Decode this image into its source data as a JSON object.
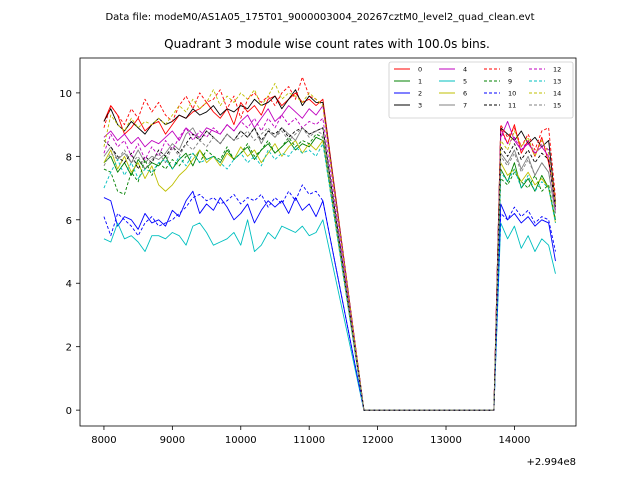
{
  "figure": {
    "suptitle": "Data file: modeM0/AS1A05_175T01_9000003004_20267cztM0_level2_quad_clean.evt"
  },
  "chart_data": {
    "type": "line",
    "title": "Quadrant 3 module wise count rates with 100.0s bins.",
    "xlabel": "",
    "ylabel": "",
    "x_offset_label": "+2.994e8",
    "xlim": [
      7650,
      14900
    ],
    "ylim": [
      -0.5,
      11.1
    ],
    "x_ticks": [
      8000,
      9000,
      10000,
      11000,
      12000,
      13000,
      14000
    ],
    "y_ticks": [
      0,
      2,
      4,
      6,
      8,
      10
    ],
    "legend_position": "upper right",
    "legend_columns": 4,
    "series": [
      {
        "name": "0",
        "color": "#ff0000",
        "dash": "solid",
        "seg1": [
          9.1,
          9.6,
          9.3,
          8.7,
          8.9,
          9.2,
          8.8,
          9.0,
          9.1,
          8.7,
          9.0,
          9.3,
          9.2,
          9.4,
          9.5,
          9.7,
          9.4,
          9.2,
          9.5,
          9.0,
          9.7,
          9.4,
          9.6,
          9.3,
          9.8,
          9.9,
          9.6,
          9.8,
          10.0,
          9.7,
          9.8,
          9.6,
          9.8
        ],
        "seg2": [
          8.9,
          8.4,
          9.0,
          8.1,
          8.5,
          8.0,
          8.6,
          7.8,
          6.6
        ]
      },
      {
        "name": "1",
        "color": "#008000",
        "dash": "solid",
        "seg1": [
          7.8,
          8.0,
          7.5,
          7.8,
          7.4,
          7.9,
          7.6,
          7.8,
          7.7,
          8.0,
          7.6,
          7.9,
          8.1,
          7.7,
          8.2,
          7.9,
          8.0,
          7.8,
          8.2,
          7.9,
          8.1,
          8.3,
          7.9,
          8.2,
          8.4,
          8.1,
          8.3,
          8.5,
          8.2,
          8.4,
          8.3,
          8.6,
          8.5
        ],
        "seg2": [
          7.6,
          7.2,
          7.8,
          7.0,
          7.3,
          6.9,
          7.4,
          7.0,
          6.0
        ]
      },
      {
        "name": "2",
        "color": "#0000ff",
        "dash": "solid",
        "seg1": [
          6.7,
          6.6,
          5.8,
          6.1,
          6.0,
          5.7,
          6.2,
          5.9,
          6.0,
          5.8,
          6.3,
          6.1,
          6.6,
          6.9,
          6.2,
          6.5,
          6.3,
          6.7,
          6.4,
          6.0,
          6.2,
          6.5,
          5.9,
          6.3,
          6.6,
          6.4,
          6.6,
          6.2,
          6.7,
          6.3,
          6.5,
          6.1,
          6.6
        ],
        "seg2": [
          6.5,
          6.0,
          6.2,
          5.9,
          6.1,
          5.8,
          6.0,
          5.9,
          4.7
        ]
      },
      {
        "name": "3",
        "color": "#000000",
        "dash": "solid",
        "seg1": [
          9.1,
          9.5,
          9.0,
          8.8,
          9.1,
          8.9,
          8.7,
          9.0,
          9.2,
          9.0,
          9.1,
          9.3,
          9.2,
          9.5,
          9.3,
          9.4,
          9.6,
          9.3,
          9.5,
          9.4,
          9.6,
          9.5,
          9.8,
          9.6,
          9.7,
          9.9,
          9.5,
          9.8,
          10.1,
          9.6,
          9.9,
          9.7,
          9.7
        ],
        "seg2": [
          8.9,
          8.7,
          8.5,
          8.8,
          8.4,
          8.6,
          8.3,
          8.5,
          6.5
        ]
      },
      {
        "name": "4",
        "color": "#bf00bf",
        "dash": "solid",
        "seg1": [
          8.6,
          8.8,
          8.5,
          8.7,
          8.4,
          8.6,
          8.3,
          8.5,
          8.4,
          8.6,
          8.8,
          8.5,
          8.9,
          8.7,
          8.6,
          8.9,
          8.8,
          8.7,
          9.0,
          8.8,
          9.1,
          9.3,
          8.9,
          9.2,
          9.5,
          9.1,
          9.3,
          9.6,
          9.4,
          9.2,
          9.5,
          9.3,
          9.6
        ],
        "seg2": [
          8.6,
          9.1,
          8.5,
          8.2,
          8.4,
          8.1,
          8.3,
          8.0,
          6.3
        ]
      },
      {
        "name": "5",
        "color": "#00bfbf",
        "dash": "solid",
        "seg1": [
          5.4,
          5.3,
          5.9,
          5.4,
          5.5,
          5.3,
          5.0,
          5.5,
          5.5,
          5.4,
          5.6,
          5.5,
          5.2,
          5.8,
          5.9,
          5.6,
          5.2,
          5.3,
          5.4,
          5.6,
          5.2,
          6.0,
          5.0,
          5.2,
          5.6,
          5.4,
          5.8,
          5.7,
          5.6,
          5.8,
          5.5,
          5.6,
          6.0
        ],
        "seg2": [
          5.9,
          5.4,
          5.8,
          5.1,
          5.5,
          5.0,
          5.4,
          5.2,
          4.3
        ]
      },
      {
        "name": "6",
        "color": "#bfbf00",
        "dash": "solid",
        "seg1": [
          7.8,
          8.2,
          7.6,
          8.0,
          7.5,
          7.8,
          7.3,
          7.7,
          7.1,
          6.9,
          7.1,
          7.4,
          7.6,
          7.9,
          8.2,
          7.8,
          8.0,
          7.7,
          8.1,
          7.9,
          8.3,
          8.0,
          8.2,
          7.8,
          8.1,
          8.4,
          8.0,
          8.3,
          8.5,
          8.1,
          8.4,
          8.2,
          8.5
        ],
        "seg2": [
          7.8,
          7.4,
          7.6,
          7.2,
          7.5,
          7.1,
          7.3,
          7.0,
          5.9
        ]
      },
      {
        "name": "7",
        "color": "#808080",
        "dash": "solid",
        "seg1": [
          8.0,
          8.3,
          7.9,
          8.1,
          7.8,
          8.2,
          7.8,
          8.0,
          7.9,
          8.1,
          8.4,
          8.2,
          8.7,
          8.9,
          8.5,
          8.8,
          8.6,
          8.4,
          8.7,
          8.5,
          8.8,
          8.6,
          8.9,
          8.4,
          8.8,
          8.6,
          8.9,
          8.7,
          8.5,
          8.9,
          8.7,
          8.8,
          8.9
        ],
        "seg2": [
          8.1,
          7.8,
          8.2,
          7.6,
          8.0,
          7.4,
          7.8,
          7.5,
          6.2
        ]
      },
      {
        "name": "8",
        "color": "#ff0000",
        "dash": "dashed",
        "seg1": [
          8.9,
          9.6,
          9.3,
          9.0,
          9.5,
          9.2,
          9.8,
          9.4,
          9.7,
          9.3,
          9.1,
          9.6,
          9.9,
          9.5,
          10.0,
          9.7,
          9.8,
          10.1,
          9.5,
          9.9,
          9.2,
          9.8,
          10.0,
          9.7,
          9.9,
          9.6,
          10.0,
          10.2,
          9.8,
          10.5,
          9.9,
          9.8,
          9.6
        ],
        "seg2": [
          9.0,
          8.6,
          8.9,
          8.3,
          8.7,
          8.2,
          8.8,
          8.9,
          6.7
        ]
      },
      {
        "name": "9",
        "color": "#008000",
        "dash": "dashed",
        "seg1": [
          7.6,
          7.5,
          6.9,
          6.8,
          7.5,
          7.2,
          7.9,
          7.4,
          7.8,
          7.6,
          7.9,
          7.7,
          8.0,
          8.1,
          7.8,
          8.2,
          8.0,
          7.9,
          8.3,
          7.9,
          8.1,
          8.4,
          8.0,
          8.2,
          8.5,
          8.1,
          8.3,
          8.6,
          8.3,
          8.5,
          8.4,
          8.7,
          8.6
        ],
        "seg2": [
          7.3,
          7.1,
          7.5,
          7.2,
          7.0,
          7.4,
          6.9,
          7.1,
          6.0
        ]
      },
      {
        "name": "10",
        "color": "#0000ff",
        "dash": "dashed",
        "seg1": [
          6.1,
          5.5,
          6.2,
          6.0,
          5.8,
          5.5,
          5.9,
          6.1,
          5.8,
          5.9,
          6.0,
          6.2,
          6.4,
          6.7,
          6.8,
          6.6,
          6.7,
          6.5,
          6.6,
          6.8,
          6.5,
          6.7,
          6.6,
          6.8,
          6.4,
          6.7,
          6.5,
          6.9,
          6.6,
          7.1,
          6.8,
          6.9,
          6.6
        ],
        "seg2": [
          6.2,
          6.0,
          6.4,
          6.1,
          6.3,
          5.9,
          6.1,
          6.0,
          5.0
        ]
      },
      {
        "name": "11",
        "color": "#000000",
        "dash": "dashed",
        "seg1": [
          8.5,
          8.3,
          8.0,
          7.8,
          8.1,
          7.6,
          8.0,
          7.8,
          8.2,
          8.0,
          8.3,
          8.1,
          8.4,
          8.7,
          8.5,
          8.8,
          8.6,
          8.4,
          8.7,
          8.5,
          8.8,
          8.6,
          8.9,
          8.5,
          8.8,
          8.7,
          8.9,
          8.6,
          8.8,
          8.9,
          8.7,
          8.8,
          8.9
        ],
        "seg2": [
          8.3,
          8.0,
          8.4,
          7.9,
          8.2,
          7.8,
          8.1,
          7.9,
          6.4
        ]
      },
      {
        "name": "12",
        "color": "#bf00bf",
        "dash": "dashed",
        "seg1": [
          8.1,
          8.7,
          8.3,
          8.5,
          8.0,
          8.4,
          7.9,
          8.3,
          8.0,
          8.5,
          8.2,
          8.6,
          8.9,
          8.5,
          8.8,
          8.6,
          8.9,
          8.7,
          9.0,
          8.8,
          9.1,
          8.9,
          9.2,
          8.8,
          9.2,
          8.9,
          9.3,
          9.0,
          9.2,
          8.9,
          9.1,
          9.0,
          9.2
        ],
        "seg2": [
          8.8,
          8.4,
          8.6,
          8.2,
          8.5,
          8.1,
          8.4,
          8.2,
          6.4
        ]
      },
      {
        "name": "13",
        "color": "#00bfbf",
        "dash": "dashed",
        "seg1": [
          7.0,
          7.5,
          7.9,
          7.4,
          7.8,
          7.3,
          7.6,
          7.5,
          7.8,
          7.9,
          7.6,
          8.0,
          7.7,
          8.1,
          7.8,
          7.9,
          8.0,
          7.8,
          7.6,
          7.9,
          8.1,
          7.8,
          8.0,
          7.7,
          8.2,
          7.9,
          8.1,
          8.0,
          8.3,
          8.1,
          8.2,
          8.0,
          8.4
        ],
        "seg2": [
          7.5,
          7.2,
          7.6,
          7.0,
          7.4,
          6.9,
          7.2,
          7.0,
          5.9
        ]
      },
      {
        "name": "14",
        "color": "#bfbf00",
        "dash": "dashed",
        "seg1": [
          8.3,
          9.3,
          9.0,
          8.8,
          9.2,
          8.9,
          9.1,
          9.0,
          9.2,
          9.0,
          9.3,
          9.6,
          9.4,
          9.8,
          9.5,
          9.7,
          10.1,
          9.6,
          9.9,
          9.7,
          10.0,
          9.8,
          10.1,
          9.6,
          9.9,
          10.3,
          9.8,
          10.0,
          9.9,
          9.7,
          10.0,
          9.8,
          9.6
        ],
        "seg2": [
          8.5,
          8.2,
          8.8,
          8.3,
          8.6,
          8.0,
          8.5,
          8.1,
          6.5
        ]
      },
      {
        "name": "15",
        "color": "#808080",
        "dash": "dashed",
        "seg1": [
          7.7,
          8.1,
          7.9,
          8.2,
          7.8,
          8.0,
          7.6,
          7.9,
          8.1,
          7.8,
          8.3,
          8.0,
          8.4,
          8.2,
          8.5,
          8.3,
          8.6,
          8.4,
          8.7,
          8.5,
          8.6,
          8.8,
          8.5,
          8.7,
          8.9,
          8.6,
          8.8,
          8.5,
          8.7,
          8.9,
          8.6,
          8.8,
          8.7
        ],
        "seg2": [
          8.0,
          7.7,
          8.1,
          7.5,
          7.9,
          7.4,
          7.8,
          7.5,
          6.2
        ]
      }
    ]
  }
}
